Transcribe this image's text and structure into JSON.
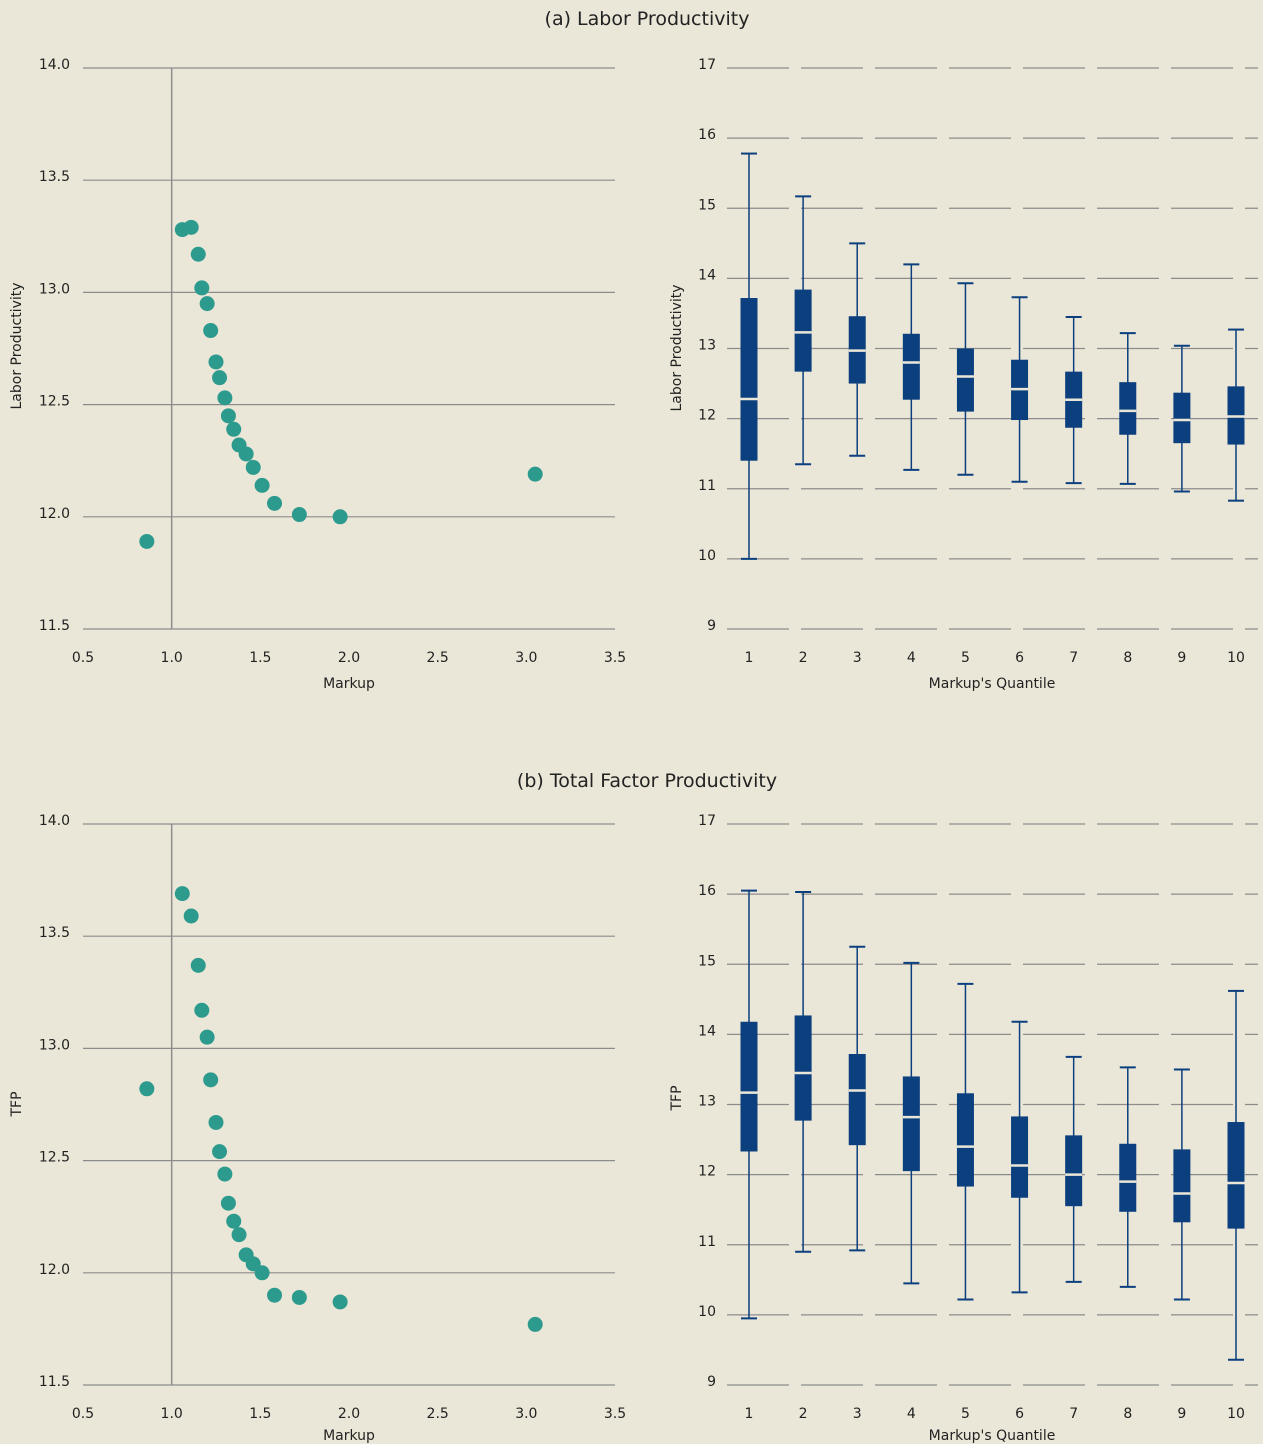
{
  "colors": {
    "background": "#ebe7d8",
    "scatter_point": "#2d9a8e",
    "box": "#0b3f7e",
    "median": "#ebe7d8",
    "grid": "#8c8c8c"
  },
  "chart_data": [
    {
      "type": "scatter",
      "panel_title": "(a) Labor Productivity",
      "xlabel": "Markup",
      "ylabel": "Labor Productivity",
      "xlim": [
        0.5,
        3.5
      ],
      "ylim": [
        11.5,
        14.0
      ],
      "x_ticks": [
        "0.5",
        "1.0",
        "1.5",
        "2.0",
        "2.5",
        "3.0",
        "3.5"
      ],
      "y_ticks": [
        "11.5",
        "12.0",
        "12.5",
        "13.0",
        "13.5",
        "14.0"
      ],
      "vline_x": 1.0,
      "grid": "horizontal",
      "x": [
        0.86,
        1.06,
        1.11,
        1.15,
        1.17,
        1.2,
        1.22,
        1.25,
        1.27,
        1.3,
        1.32,
        1.35,
        1.38,
        1.42,
        1.46,
        1.51,
        1.58,
        1.72,
        1.95,
        3.05
      ],
      "y": [
        11.89,
        13.28,
        13.29,
        13.17,
        13.02,
        12.95,
        12.83,
        12.69,
        12.62,
        12.53,
        12.45,
        12.39,
        12.32,
        12.28,
        12.22,
        12.14,
        12.06,
        12.01,
        12.0,
        12.19
      ]
    },
    {
      "type": "box",
      "xlabel": "Markup's Quantile",
      "ylabel": "Labor Productivity",
      "ylim": [
        9,
        17
      ],
      "y_ticks": [
        "9",
        "10",
        "11",
        "12",
        "13",
        "14",
        "15",
        "16",
        "17"
      ],
      "grid": "horizontal",
      "categories": [
        "1",
        "2",
        "3",
        "4",
        "5",
        "6",
        "7",
        "8",
        "9",
        "10"
      ],
      "whisker_low": [
        10.0,
        11.35,
        11.47,
        11.27,
        11.2,
        11.1,
        11.08,
        11.07,
        10.96,
        10.83
      ],
      "q1": [
        11.4,
        12.67,
        12.5,
        12.27,
        12.1,
        11.98,
        11.87,
        11.77,
        11.65,
        11.63
      ],
      "median": [
        12.28,
        13.23,
        12.97,
        12.8,
        12.6,
        12.42,
        12.27,
        12.11,
        11.98,
        12.03
      ],
      "q3": [
        13.72,
        13.84,
        13.46,
        13.21,
        13.0,
        12.84,
        12.67,
        12.52,
        12.37,
        12.46
      ],
      "whisker_high": [
        15.78,
        15.17,
        14.5,
        14.2,
        13.93,
        13.73,
        13.45,
        13.22,
        13.04,
        13.27
      ]
    },
    {
      "type": "scatter",
      "panel_title": "(b) Total Factor Productivity",
      "xlabel": "Markup",
      "ylabel": "TFP",
      "xlim": [
        0.5,
        3.5
      ],
      "ylim": [
        11.5,
        14.0
      ],
      "x_ticks": [
        "0.5",
        "1.0",
        "1.5",
        "2.0",
        "2.5",
        "3.0",
        "3.5"
      ],
      "y_ticks": [
        "11.5",
        "12.0",
        "12.5",
        "13.0",
        "13.5",
        "14.0"
      ],
      "vline_x": 1.0,
      "grid": "horizontal",
      "x": [
        0.86,
        1.06,
        1.11,
        1.15,
        1.17,
        1.2,
        1.22,
        1.25,
        1.27,
        1.3,
        1.32,
        1.35,
        1.38,
        1.42,
        1.46,
        1.51,
        1.58,
        1.72,
        1.95,
        3.05
      ],
      "y": [
        12.82,
        13.69,
        13.59,
        13.37,
        13.17,
        13.05,
        12.86,
        12.67,
        12.54,
        12.44,
        12.31,
        12.23,
        12.17,
        12.08,
        12.04,
        12.0,
        11.9,
        11.89,
        11.87,
        11.77
      ]
    },
    {
      "type": "box",
      "xlabel": "Markup's Quantile",
      "ylabel": "TFP",
      "ylim": [
        9,
        17
      ],
      "y_ticks": [
        "9",
        "10",
        "11",
        "12",
        "13",
        "14",
        "15",
        "16",
        "17"
      ],
      "grid": "horizontal",
      "categories": [
        "1",
        "2",
        "3",
        "4",
        "5",
        "6",
        "7",
        "8",
        "9",
        "10"
      ],
      "whisker_low": [
        9.95,
        10.9,
        10.92,
        10.45,
        10.22,
        10.32,
        10.47,
        10.4,
        10.22,
        9.36
      ],
      "q1": [
        12.33,
        12.77,
        12.42,
        12.05,
        11.83,
        11.67,
        11.55,
        11.47,
        11.32,
        11.23
      ],
      "median": [
        13.17,
        13.45,
        13.2,
        12.82,
        12.4,
        12.13,
        12.0,
        11.9,
        11.73,
        11.88
      ],
      "q3": [
        14.18,
        14.27,
        13.72,
        13.4,
        13.16,
        12.83,
        12.56,
        12.44,
        12.36,
        12.75
      ],
      "whisker_high": [
        16.05,
        16.03,
        15.25,
        15.02,
        14.72,
        14.18,
        13.68,
        13.53,
        13.5,
        14.62
      ]
    }
  ]
}
